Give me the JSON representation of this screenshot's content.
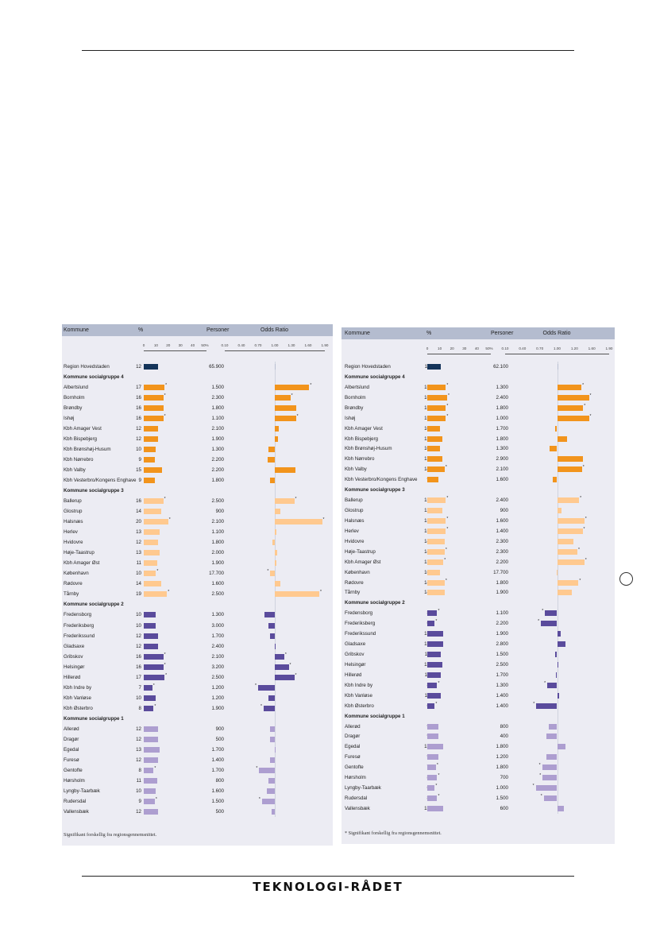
{
  "footer": {
    "logo_text": "TEKNOLOGI-RÅDET"
  },
  "colors": {
    "navy": "#14345a",
    "g4": "#f2941c",
    "g3": "#ffc98f",
    "g2": "#5a4b9c",
    "g1": "#ad9ed0"
  },
  "tables": [
    {
      "headers": {
        "kommune": "Kommune",
        "pct": "%",
        "personer": "Personer",
        "odds": "Odds Ratio"
      },
      "pct_ticks": [
        "0",
        "10",
        "20",
        "30",
        "40",
        "50%"
      ],
      "odds_ticks": [
        "0.10",
        "0.40",
        "0.70",
        "1.00",
        "1.30",
        "1.60",
        "1.90"
      ],
      "footnote": "Signifikant forskellig fra regionsgennemsnittet.",
      "rows": [
        {
          "type": "region",
          "name": "Region Hovedstaden",
          "pct": 12,
          "persons": "65.900",
          "odds": 1.0,
          "sig": false,
          "color": "navy"
        },
        {
          "type": "group",
          "name": "Kommune socialgruppe 4"
        },
        {
          "name": "Albertslund",
          "pct": 17,
          "persons": "1.500",
          "odds": 1.62,
          "sig": true,
          "color": "g4"
        },
        {
          "name": "Bornholm",
          "pct": 16,
          "persons": "2.300",
          "odds": 1.28,
          "sig": true,
          "color": "g4"
        },
        {
          "name": "Brøndby",
          "pct": 16,
          "persons": "1.800",
          "odds": 1.38,
          "sig": false,
          "color": "g4"
        },
        {
          "name": "Ishøj",
          "pct": 16,
          "persons": "1.100",
          "odds": 1.38,
          "sig": true,
          "color": "g4"
        },
        {
          "name": "Kbh Amager Vest",
          "pct": 12,
          "persons": "2.100",
          "odds": 1.07,
          "sig": false,
          "color": "g4"
        },
        {
          "name": "Kbh Bispebjerg",
          "pct": 12,
          "persons": "1.900",
          "odds": 1.05,
          "sig": false,
          "color": "g4"
        },
        {
          "name": "Kbh Brønshøj-Husum",
          "pct": 10,
          "persons": "1.300",
          "odds": 0.88,
          "sig": false,
          "color": "g4"
        },
        {
          "name": "Kbh Nørrebro",
          "pct": 9,
          "persons": "2.200",
          "odds": 0.87,
          "sig": false,
          "color": "g4"
        },
        {
          "name": "Kbh Valby",
          "pct": 15,
          "persons": "2.200",
          "odds": 1.37,
          "sig": false,
          "color": "g4"
        },
        {
          "name": "Kbh Vesterbro/Kongens Enghave",
          "pct": 9,
          "persons": "1.800",
          "odds": 0.91,
          "sig": false,
          "color": "g4"
        },
        {
          "type": "group",
          "name": "Kommune socialgruppe 3"
        },
        {
          "name": "Ballerup",
          "pct": 16,
          "persons": "2.500",
          "odds": 1.35,
          "sig": true,
          "color": "g3"
        },
        {
          "name": "Glostrup",
          "pct": 14,
          "persons": "900",
          "odds": 1.1,
          "sig": false,
          "color": "g3"
        },
        {
          "name": "Halsnæs",
          "pct": 20,
          "persons": "2.100",
          "odds": 1.85,
          "sig": true,
          "color": "g3"
        },
        {
          "name": "Herlev",
          "pct": 13,
          "persons": "1.100",
          "odds": 1.03,
          "sig": false,
          "color": "g3"
        },
        {
          "name": "Hvidovre",
          "pct": 12,
          "persons": "1.800",
          "odds": 0.96,
          "sig": false,
          "color": "g3"
        },
        {
          "name": "Høje-Taastrup",
          "pct": 13,
          "persons": "2.000",
          "odds": 1.04,
          "sig": false,
          "color": "g3"
        },
        {
          "name": "Kbh Amager Øst",
          "pct": 11,
          "persons": "1.900",
          "odds": 1.03,
          "sig": false,
          "color": "g3"
        },
        {
          "name": "København",
          "pct": 10,
          "persons": "17.700",
          "odds": 0.92,
          "sig": true,
          "color": "g3"
        },
        {
          "name": "Rødovre",
          "pct": 14,
          "persons": "1.600",
          "odds": 1.1,
          "sig": false,
          "color": "g3"
        },
        {
          "name": "Tårnby",
          "pct": 19,
          "persons": "2.500",
          "odds": 1.8,
          "sig": true,
          "color": "g3"
        },
        {
          "type": "group",
          "name": "Kommune socialgruppe 2"
        },
        {
          "name": "Fredensborg",
          "pct": 10,
          "persons": "1.300",
          "odds": 0.82,
          "sig": false,
          "color": "g2"
        },
        {
          "name": "Frederiksberg",
          "pct": 10,
          "persons": "3.000",
          "odds": 0.88,
          "sig": false,
          "color": "g2"
        },
        {
          "name": "Frederikssund",
          "pct": 12,
          "persons": "1.700",
          "odds": 0.92,
          "sig": false,
          "color": "g2"
        },
        {
          "name": "Gladsaxe",
          "pct": 12,
          "persons": "2.400",
          "odds": 1.0,
          "sig": false,
          "color": "g2"
        },
        {
          "name": "Gribskov",
          "pct": 16,
          "persons": "2.100",
          "odds": 1.17,
          "sig": true,
          "color": "g2"
        },
        {
          "name": "Helsingør",
          "pct": 16,
          "persons": "3.200",
          "odds": 1.25,
          "sig": true,
          "color": "g2"
        },
        {
          "name": "Hillerød",
          "pct": 17,
          "persons": "2.500",
          "odds": 1.35,
          "sig": true,
          "color": "g2"
        },
        {
          "name": "Kbh Indre by",
          "pct": 7,
          "persons": "1.200",
          "odds": 0.7,
          "sig": true,
          "color": "g2"
        },
        {
          "name": "Kbh Vanløse",
          "pct": 10,
          "persons": "1.200",
          "odds": 0.89,
          "sig": false,
          "color": "g2"
        },
        {
          "name": "Kbh Østerbro",
          "pct": 8,
          "persons": "1.900",
          "odds": 0.8,
          "sig": true,
          "color": "g2"
        },
        {
          "type": "group",
          "name": "Kommune socialgruppe 1"
        },
        {
          "name": "Allerød",
          "pct": 12,
          "persons": "900",
          "odds": 0.91,
          "sig": false,
          "color": "g1"
        },
        {
          "name": "Dragør",
          "pct": 12,
          "persons": "500",
          "odds": 0.92,
          "sig": false,
          "color": "g1"
        },
        {
          "name": "Egedal",
          "pct": 13,
          "persons": "1.700",
          "odds": 1.01,
          "sig": false,
          "color": "g1"
        },
        {
          "name": "Furesø",
          "pct": 12,
          "persons": "1.400",
          "odds": 0.91,
          "sig": false,
          "color": "g1"
        },
        {
          "name": "Gentofte",
          "pct": 8,
          "persons": "1.700",
          "odds": 0.72,
          "sig": true,
          "color": "g1"
        },
        {
          "name": "Hørsholm",
          "pct": 11,
          "persons": "800",
          "odds": 0.88,
          "sig": false,
          "color": "g1"
        },
        {
          "name": "Lyngby-Taarbæk",
          "pct": 10,
          "persons": "1.600",
          "odds": 0.86,
          "sig": false,
          "color": "g1"
        },
        {
          "name": "Rudersdal",
          "pct": 9,
          "persons": "1.500",
          "odds": 0.77,
          "sig": true,
          "color": "g1"
        },
        {
          "name": "Vallensbæk",
          "pct": 12,
          "persons": "500",
          "odds": 0.94,
          "sig": false,
          "color": "g1"
        }
      ]
    },
    {
      "headers": {
        "kommune": "Kommune",
        "pct": "%",
        "personer": "Personer",
        "odds": "Odds Ratio"
      },
      "pct_ticks": [
        "0",
        "10",
        "20",
        "30",
        "40",
        "50%"
      ],
      "odds_ticks": [
        "0.10",
        "0.40",
        "0.70",
        "1.00",
        "1.20",
        "1.60",
        "1.90"
      ],
      "footnote": "* Signifikant forskellig fra regionsgennemsnittet.",
      "rows": [
        {
          "type": "region",
          "name": "Region Hovedstaden",
          "pct": 11,
          "persons": "62.100",
          "odds": 1.0,
          "sig": false,
          "color": "navy"
        },
        {
          "type": "group",
          "name": "Kommune socialgruppe 4"
        },
        {
          "name": "Albertslund",
          "pct": 15,
          "persons": "1.300",
          "odds": 1.42,
          "sig": true,
          "color": "g4"
        },
        {
          "name": "Bornholm",
          "pct": 16,
          "persons": "2.400",
          "odds": 1.55,
          "sig": true,
          "color": "g4"
        },
        {
          "name": "Brøndby",
          "pct": 15,
          "persons": "1.800",
          "odds": 1.45,
          "sig": true,
          "color": "g4"
        },
        {
          "name": "Ishøj",
          "pct": 15,
          "persons": "1.000",
          "odds": 1.55,
          "sig": true,
          "color": "g4"
        },
        {
          "name": "Kbh Amager Vest",
          "pct": 10,
          "persons": "1.700",
          "odds": 0.97,
          "sig": false,
          "color": "g4"
        },
        {
          "name": "Kbh Bispebjerg",
          "pct": 12,
          "persons": "1.800",
          "odds": 1.17,
          "sig": false,
          "color": "g4"
        },
        {
          "name": "Kbh Brønshøj-Husum",
          "pct": 10,
          "persons": "1.300",
          "odds": 0.87,
          "sig": false,
          "color": "g4"
        },
        {
          "name": "Kbh Nørrebro",
          "pct": 12,
          "persons": "2.900",
          "odds": 1.44,
          "sig": false,
          "color": "g4"
        },
        {
          "name": "Kbh Valby",
          "pct": 14,
          "persons": "2.100",
          "odds": 1.43,
          "sig": true,
          "color": "g4"
        },
        {
          "name": "Kbh Vesterbro/Kongens Enghave",
          "pct": 9,
          "persons": "1.600",
          "odds": 0.93,
          "sig": false,
          "color": "g4"
        },
        {
          "type": "group",
          "name": "Kommune socialgruppe 3"
        },
        {
          "name": "Ballerup",
          "pct": 15,
          "persons": "2.400",
          "odds": 1.38,
          "sig": true,
          "color": "g3"
        },
        {
          "name": "Glostrup",
          "pct": 12,
          "persons": "900",
          "odds": 1.08,
          "sig": false,
          "color": "g3"
        },
        {
          "name": "Halsnæs",
          "pct": 15,
          "persons": "1.600",
          "odds": 1.47,
          "sig": true,
          "color": "g3"
        },
        {
          "name": "Herlev",
          "pct": 15,
          "persons": "1.400",
          "odds": 1.44,
          "sig": true,
          "color": "g3"
        },
        {
          "name": "Hvidovre",
          "pct": 14,
          "persons": "2.300",
          "odds": 1.28,
          "sig": false,
          "color": "g3"
        },
        {
          "name": "Høje-Taastrup",
          "pct": 14,
          "persons": "2.300",
          "odds": 1.35,
          "sig": true,
          "color": "g3"
        },
        {
          "name": "Kbh Amager Øst",
          "pct": 13,
          "persons": "2.200",
          "odds": 1.47,
          "sig": true,
          "color": "g3"
        },
        {
          "name": "København",
          "pct": 10,
          "persons": "17.700",
          "odds": 0.99,
          "sig": false,
          "color": "g3"
        },
        {
          "name": "Rødovre",
          "pct": 14,
          "persons": "1.800",
          "odds": 1.37,
          "sig": true,
          "color": "g3"
        },
        {
          "name": "Tårnby",
          "pct": 14,
          "persons": "1.900",
          "odds": 1.25,
          "sig": false,
          "color": "g3"
        },
        {
          "type": "group",
          "name": "Kommune socialgruppe 2"
        },
        {
          "name": "Fredensborg",
          "pct": 8,
          "persons": "1.100",
          "odds": 0.79,
          "sig": true,
          "color": "g2"
        },
        {
          "name": "Frederiksberg",
          "pct": 6,
          "persons": "2.200",
          "odds": 0.72,
          "sig": true,
          "color": "g2"
        },
        {
          "name": "Frederikssund",
          "pct": 13,
          "persons": "1.900",
          "odds": 1.06,
          "sig": false,
          "color": "g2"
        },
        {
          "name": "Gladsaxe",
          "pct": 13,
          "persons": "2.800",
          "odds": 1.15,
          "sig": false,
          "color": "g2"
        },
        {
          "name": "Gribskov",
          "pct": 11,
          "persons": "1.500",
          "odds": 0.96,
          "sig": false,
          "color": "g2"
        },
        {
          "name": "Helsingør",
          "pct": 12,
          "persons": "2.500",
          "odds": 1.01,
          "sig": false,
          "color": "g2"
        },
        {
          "name": "Hillerød",
          "pct": 11,
          "persons": "1.700",
          "odds": 0.98,
          "sig": false,
          "color": "g2"
        },
        {
          "name": "Kbh Indre by",
          "pct": 8,
          "persons": "1.300",
          "odds": 0.83,
          "sig": true,
          "color": "g2"
        },
        {
          "name": "Kbh Vanløse",
          "pct": 11,
          "persons": "1.400",
          "odds": 1.04,
          "sig": false,
          "color": "g2"
        },
        {
          "name": "Kbh Østerbro",
          "pct": 6,
          "persons": "1.400",
          "odds": 0.64,
          "sig": true,
          "color": "g2"
        },
        {
          "type": "group",
          "name": "Kommune socialgruppe 1"
        },
        {
          "name": "Allerød",
          "pct": 9,
          "persons": "800",
          "odds": 0.85,
          "sig": false,
          "color": "g1"
        },
        {
          "name": "Dragør",
          "pct": 9,
          "persons": "400",
          "odds": 0.82,
          "sig": false,
          "color": "g1"
        },
        {
          "name": "Egedal",
          "pct": 13,
          "persons": "1.800",
          "odds": 1.14,
          "sig": false,
          "color": "g1"
        },
        {
          "name": "Furesø",
          "pct": 9,
          "persons": "1.200",
          "odds": 0.82,
          "sig": false,
          "color": "g1"
        },
        {
          "name": "Gentofte",
          "pct": 7,
          "persons": "1.800",
          "odds": 0.74,
          "sig": true,
          "color": "g1"
        },
        {
          "name": "Hørsholm",
          "pct": 8,
          "persons": "700",
          "odds": 0.75,
          "sig": true,
          "color": "g1"
        },
        {
          "name": "Lyngby-Taarbæk",
          "pct": 6,
          "persons": "1.000",
          "odds": 0.63,
          "sig": true,
          "color": "g1"
        },
        {
          "name": "Rudersdal",
          "pct": 8,
          "persons": "1.500",
          "odds": 0.77,
          "sig": true,
          "color": "g1"
        },
        {
          "name": "Vallensbæk",
          "pct": 13,
          "persons": "600",
          "odds": 1.12,
          "sig": false,
          "color": "g1"
        }
      ]
    }
  ]
}
